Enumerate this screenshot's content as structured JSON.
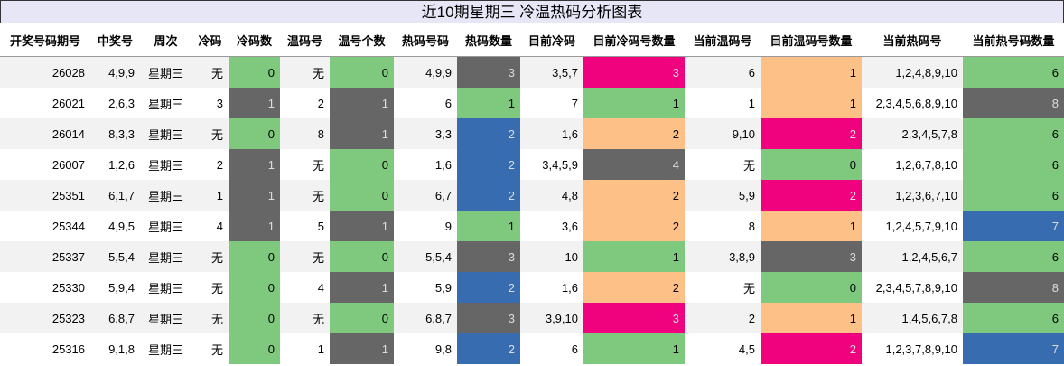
{
  "table": {
    "title": "近10期星期三 冷温热码分析图表",
    "header": [
      "开奖号码期号",
      "中奖号",
      "周次",
      "冷码",
      "冷码数",
      "温码号",
      "温号个数",
      "热码号码",
      "热码数量",
      "目前冷码",
      "目前冷码号数量",
      "当前温码号",
      "目前温码号数量",
      "当前热码号",
      "当前热号码数量"
    ],
    "rows": [
      [
        "26028",
        "4,9,9",
        "星期三",
        "无",
        "0",
        "无",
        "0",
        "4,9,9",
        "3",
        "3,5,7",
        "3",
        "6",
        "1",
        "1,2,4,8,9,10",
        "6"
      ],
      [
        "26021",
        "2,6,3",
        "星期三",
        "3",
        "1",
        "2",
        "1",
        "6",
        "1",
        "7",
        "1",
        "1",
        "1",
        "2,3,4,5,6,8,9,10",
        "8"
      ],
      [
        "26014",
        "8,3,3",
        "星期三",
        "无",
        "0",
        "8",
        "1",
        "3,3",
        "2",
        "1,6",
        "2",
        "9,10",
        "2",
        "2,3,4,5,7,8",
        "6"
      ],
      [
        "26007",
        "1,2,6",
        "星期三",
        "2",
        "1",
        "无",
        "0",
        "1,6",
        "2",
        "3,4,5,9",
        "4",
        "无",
        "0",
        "1,2,6,7,8,10",
        "6"
      ],
      [
        "25351",
        "6,1,7",
        "星期三",
        "1",
        "1",
        "无",
        "0",
        "6,7",
        "2",
        "4,8",
        "2",
        "5,9",
        "2",
        "1,2,3,6,7,10",
        "6"
      ],
      [
        "25344",
        "4,9,5",
        "星期三",
        "4",
        "1",
        "5",
        "1",
        "9",
        "1",
        "3,6",
        "2",
        "8",
        "1",
        "1,2,4,5,7,9,10",
        "7"
      ],
      [
        "25337",
        "5,5,4",
        "星期三",
        "无",
        "0",
        "无",
        "0",
        "5,5,4",
        "3",
        "10",
        "1",
        "3,8,9",
        "3",
        "1,2,4,5,6,7",
        "6"
      ],
      [
        "25330",
        "5,9,4",
        "星期三",
        "无",
        "0",
        "4",
        "1",
        "5,9",
        "2",
        "1,6",
        "2",
        "无",
        "0",
        "2,3,4,5,7,8,9,10",
        "8"
      ],
      [
        "25323",
        "6,8,7",
        "星期三",
        "无",
        "0",
        "无",
        "0",
        "6,8,7",
        "3",
        "3,9,10",
        "3",
        "2",
        "1",
        "1,4,5,6,7,8",
        "6"
      ],
      [
        "25316",
        "9,1,8",
        "星期三",
        "无",
        "0",
        "1",
        "1",
        "9,8",
        "2",
        "6",
        "1",
        "4,5",
        "2",
        "1,2,3,7,8,9,10",
        "7"
      ]
    ],
    "colors": [
      [
        null,
        null,
        null,
        null,
        "#7fc97f",
        null,
        "#7fc97f",
        null,
        "#666666",
        null,
        "#f0027f",
        null,
        "#fdc086",
        null,
        "#7fc97f"
      ],
      [
        null,
        null,
        null,
        null,
        "#666666",
        null,
        "#666666",
        null,
        "#7fc97f",
        null,
        "#7fc97f",
        null,
        "#fdc086",
        null,
        "#666666"
      ],
      [
        null,
        null,
        null,
        null,
        "#7fc97f",
        null,
        "#666666",
        null,
        "#386cb0",
        null,
        "#fdc086",
        null,
        "#f0027f",
        null,
        "#7fc97f"
      ],
      [
        null,
        null,
        null,
        null,
        "#666666",
        null,
        "#7fc97f",
        null,
        "#386cb0",
        null,
        "#666666",
        null,
        "#7fc97f",
        null,
        "#7fc97f"
      ],
      [
        null,
        null,
        null,
        null,
        "#666666",
        null,
        "#7fc97f",
        null,
        "#386cb0",
        null,
        "#fdc086",
        null,
        "#f0027f",
        null,
        "#7fc97f"
      ],
      [
        null,
        null,
        null,
        null,
        "#666666",
        null,
        "#666666",
        null,
        "#7fc97f",
        null,
        "#fdc086",
        null,
        "#fdc086",
        null,
        "#386cb0"
      ],
      [
        null,
        null,
        null,
        null,
        "#7fc97f",
        null,
        "#7fc97f",
        null,
        "#666666",
        null,
        "#7fc97f",
        null,
        "#666666",
        null,
        "#7fc97f"
      ],
      [
        null,
        null,
        null,
        null,
        "#7fc97f",
        null,
        "#666666",
        null,
        "#386cb0",
        null,
        "#fdc086",
        null,
        "#7fc97f",
        null,
        "#666666"
      ],
      [
        null,
        null,
        null,
        null,
        "#7fc97f",
        null,
        "#7fc97f",
        null,
        "#666666",
        null,
        "#f0027f",
        null,
        "#fdc086",
        null,
        "#7fc97f"
      ],
      [
        null,
        null,
        null,
        null,
        "#7fc97f",
        null,
        "#666666",
        null,
        "#386cb0",
        null,
        "#7fc97f",
        null,
        "#f0027f",
        null,
        "#386cb0"
      ]
    ]
  }
}
